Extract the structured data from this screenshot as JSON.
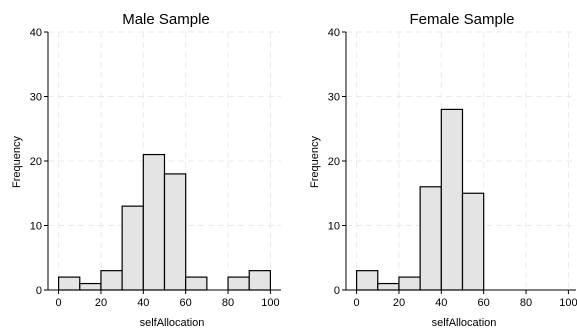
{
  "chart_data": [
    {
      "type": "bar",
      "title": "Male Sample",
      "xlabel": "selfAllocation",
      "ylabel": "Frequency",
      "xlim": [
        -5,
        105
      ],
      "ylim": [
        0,
        40
      ],
      "x_ticks": [
        "0",
        "20",
        "40",
        "60",
        "80",
        "100"
      ],
      "y_ticks": [
        "0",
        "10",
        "20",
        "30",
        "40"
      ],
      "grid": true,
      "bins": [
        {
          "start": 0,
          "end": 10,
          "value": 2
        },
        {
          "start": 10,
          "end": 20,
          "value": 1
        },
        {
          "start": 20,
          "end": 30,
          "value": 3
        },
        {
          "start": 30,
          "end": 40,
          "value": 13
        },
        {
          "start": 40,
          "end": 50,
          "value": 21
        },
        {
          "start": 50,
          "end": 60,
          "value": 18
        },
        {
          "start": 60,
          "end": 70,
          "value": 2
        },
        {
          "start": 80,
          "end": 90,
          "value": 2
        },
        {
          "start": 90,
          "end": 100,
          "value": 3
        }
      ]
    },
    {
      "type": "bar",
      "title": "Female Sample",
      "xlabel": "selfAllocation",
      "ylabel": "Frequency",
      "xlim": [
        -5,
        105
      ],
      "ylim": [
        0,
        40
      ],
      "x_ticks": [
        "0",
        "20",
        "40",
        "60",
        "80",
        "100"
      ],
      "y_ticks": [
        "0",
        "10",
        "20",
        "30",
        "40"
      ],
      "grid": true,
      "bins": [
        {
          "start": 0,
          "end": 10,
          "value": 3
        },
        {
          "start": 10,
          "end": 20,
          "value": 1
        },
        {
          "start": 20,
          "end": 30,
          "value": 2
        },
        {
          "start": 30,
          "end": 40,
          "value": 16
        },
        {
          "start": 40,
          "end": 50,
          "value": 28
        },
        {
          "start": 50,
          "end": 60,
          "value": 15
        }
      ]
    }
  ]
}
